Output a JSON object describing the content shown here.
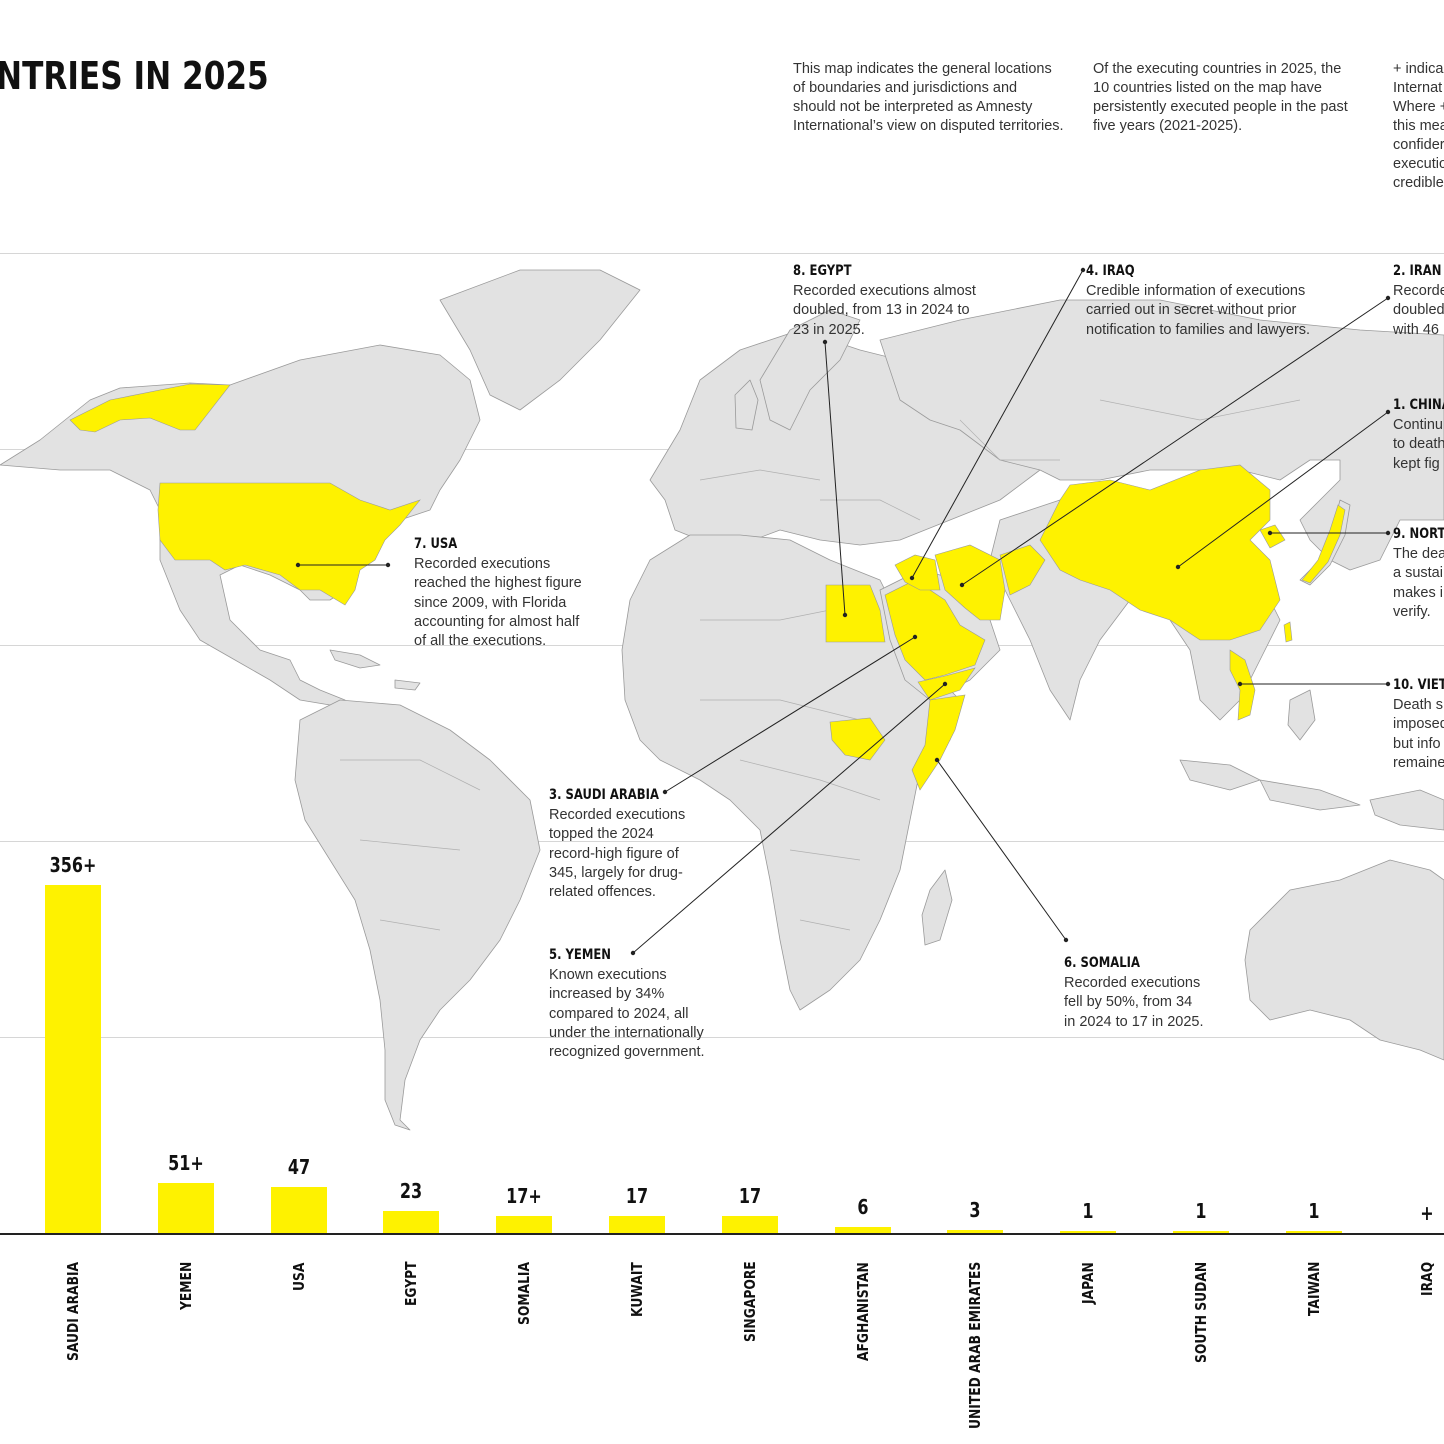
{
  "title": "NTRIES IN 2025",
  "notes": [
    [
      "This map indicates the general locations",
      "of boundaries and jurisdictions and",
      "should not be interpreted as Amnesty",
      "International’s view on disputed territories."
    ],
    [
      "Of the executing countries in 2025, the",
      "10 countries listed on the map have",
      "persistently executed people in the past",
      "five years (2021-2025)."
    ],
    [
      "+ indica",
      "Internat",
      "Where +",
      "this mea",
      "confider",
      "executio",
      "credible"
    ]
  ],
  "colors": {
    "highlight": "#fef200",
    "land": "#e2e2e2",
    "border": "#9a9a9a",
    "line": "#222222"
  },
  "callouts": [
    {
      "key": "egypt",
      "title": "8. EGYPT",
      "lines": [
        "Recorded executions almost",
        "doubled, from 13 in 2024 to",
        "23 in 2025."
      ]
    },
    {
      "key": "iraq",
      "title": "4. IRAQ",
      "lines": [
        "Credible information of executions",
        "carried out in secret without prior",
        "notification to families and lawyers."
      ]
    },
    {
      "key": "iran",
      "title": "2. IRAN",
      "lines": [
        "Recorde",
        "doubled",
        "with 46"
      ]
    },
    {
      "key": "china",
      "title": "1. CHINA",
      "lines": [
        "Continu",
        "to death",
        "kept fig"
      ]
    },
    {
      "key": "northkorea",
      "title": "9. NORT",
      "lines": [
        "The dea",
        "a sustai",
        "makes i",
        "verify."
      ]
    },
    {
      "key": "vietnam",
      "title": "10. VIET",
      "lines": [
        "Death s",
        "imposed",
        "but info",
        "remaine"
      ]
    },
    {
      "key": "usa",
      "title": "7. USA",
      "lines": [
        "Recorded executions",
        "reached the highest figure",
        "since 2009, with Florida",
        "accounting for almost half",
        "of all the executions."
      ]
    },
    {
      "key": "saudi",
      "title": "3. SAUDI ARABIA",
      "lines": [
        "Recorded executions",
        "topped the 2024",
        "record-high figure of",
        "345, largely for drug-",
        "related offences."
      ]
    },
    {
      "key": "yemen",
      "title": "5. YEMEN",
      "lines": [
        "Known executions",
        "increased by 34%",
        "compared to 2024, all",
        "under the internationally",
        "recognized government."
      ]
    },
    {
      "key": "somalia",
      "title": "6. SOMALIA",
      "lines": [
        "Recorded executions",
        "fell by 50%, from 34",
        "in 2024 to 17 in 2025."
      ]
    }
  ],
  "chart_data": {
    "type": "bar",
    "categories": [
      "SAUDI ARABIA",
      "YEMEN",
      "USA",
      "EGYPT",
      "SOMALIA",
      "KUWAIT",
      "SINGAPORE",
      "AFGHANISTAN",
      "UNITED ARAB EMIRATES",
      "JAPAN",
      "SOUTH SUDAN",
      "TAIWAN",
      "IRAQ"
    ],
    "values": [
      356,
      51,
      47,
      23,
      17,
      17,
      17,
      6,
      3,
      1,
      1,
      1,
      0
    ],
    "value_labels": [
      "356+",
      "51+",
      "47",
      "23",
      "17+",
      "17",
      "17",
      "6",
      "3",
      "1",
      "1",
      "1",
      "+"
    ],
    "ylim": [
      0,
      356
    ]
  }
}
